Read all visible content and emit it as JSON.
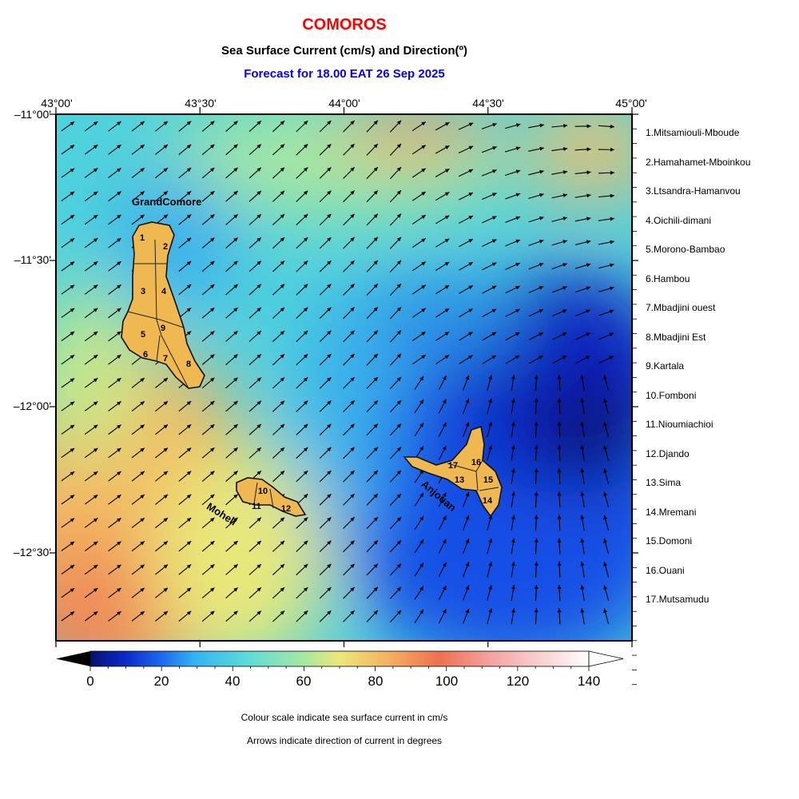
{
  "title": "COMOROS",
  "subtitle": "Sea Surface Current (cm/s) and Direction(º)",
  "forecast": "Forecast for  18.00 EAT 26 Sep 2025",
  "lon_ticks": [
    "43°00'",
    "43°30'",
    "44°00'",
    "44°30'",
    "45°00'"
  ],
  "lat_ticks": [
    "–11°00'",
    "–11°30'",
    "–12°00'",
    "–12°30'"
  ],
  "island_labels": {
    "grand_comore": "GrandComore",
    "moheli": "Moheli",
    "anjouan": "Anjouan"
  },
  "regions": [
    "1.Mitsamiouli-Mboude",
    "2.Hamahamet-Mboinkou",
    "3.Ltsandra-Hamanvou",
    "4.Oichili-dimani",
    "5.Morono-Bambao",
    "6.Hambou",
    "7.Mbadjini ouest",
    "8.Mbadjini Est",
    "9.Kartala",
    "10.Fomboni",
    "11.Nioumiachioi",
    "12.Djando",
    "13.Sima",
    "14.Mremani",
    "15.Domoni",
    "16.Ouani",
    "17.Mutsamudu"
  ],
  "region_numbers": [
    "1",
    "2",
    "3",
    "4",
    "5",
    "6",
    "7",
    "8",
    "9",
    "10",
    "11",
    "12",
    "13",
    "14",
    "15",
    "16",
    "17"
  ],
  "colorbar": {
    "ticks": [
      "0",
      "20",
      "40",
      "60",
      "80",
      "100",
      "120",
      "140"
    ],
    "min": 0,
    "max": 140,
    "unit": "cm/s"
  },
  "notes": [
    "Colour scale indicate sea surface current in cm/s",
    "Arrows indicate direction of current in degrees"
  ],
  "colors": {
    "title": "#ff0000",
    "forecast": "#0000ff",
    "land": "#f0b850"
  }
}
